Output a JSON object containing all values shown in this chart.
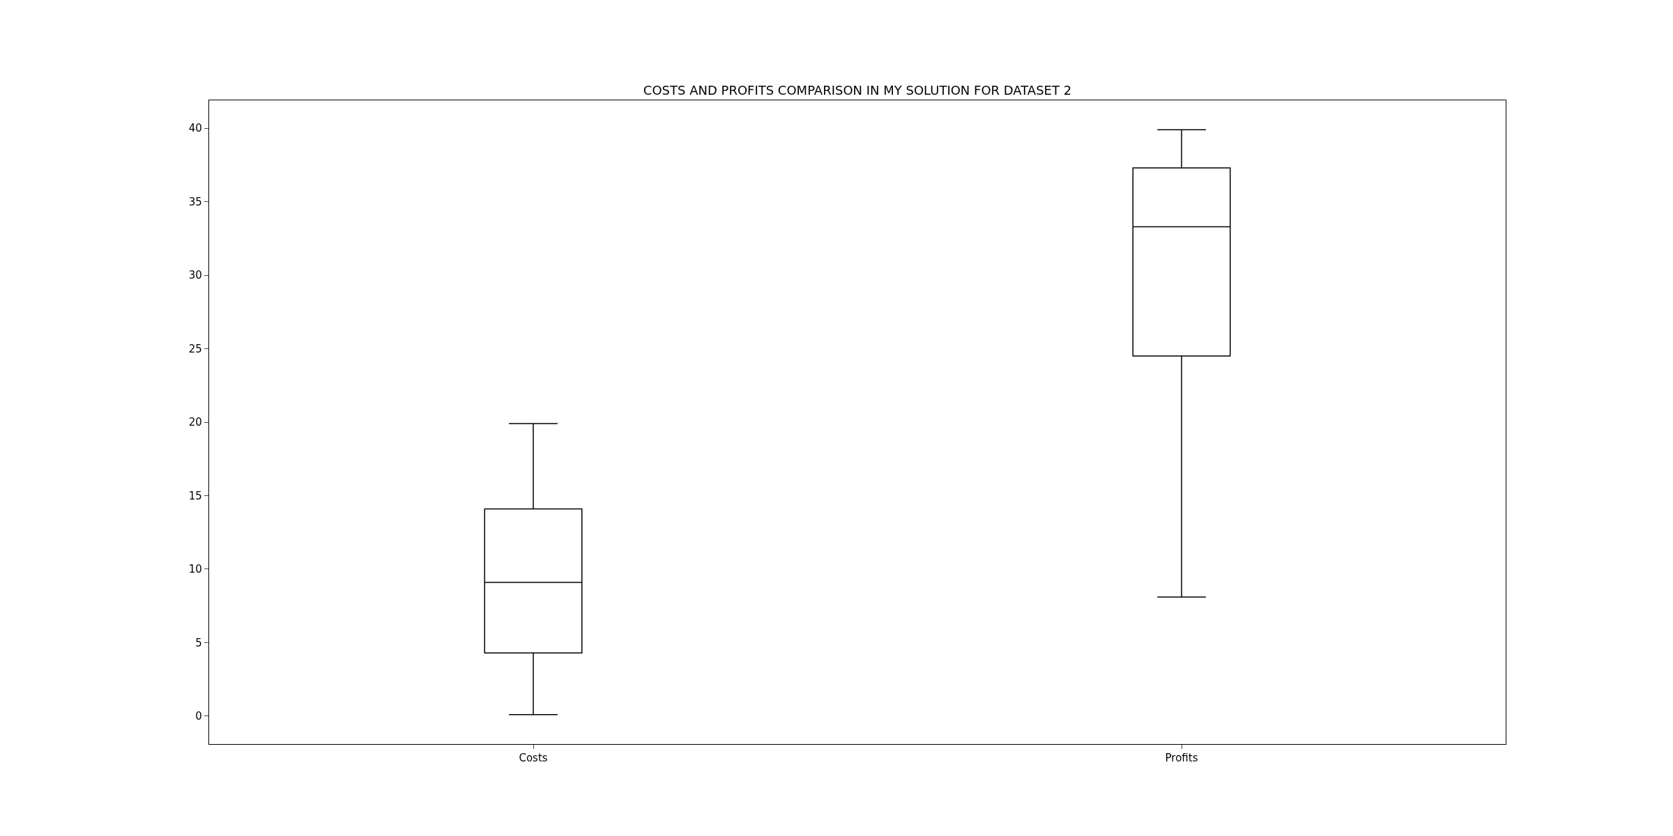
{
  "chart_data": {
    "type": "box",
    "title": "COSTS AND PROFITS COMPARISON IN MY SOLUTION FOR DATASET 2",
    "categories": [
      "Costs",
      "Profits"
    ],
    "series": [
      {
        "color": "#000000",
        "boxes": [
          {
            "low": 0.1,
            "q1": 4.3,
            "median": 9.1,
            "q3": 14.1,
            "high": 19.9
          },
          {
            "low": 8.1,
            "q1": 24.5,
            "median": 33.3,
            "q3": 37.3,
            "high": 39.9
          }
        ]
      }
    ],
    "ylim": [
      -1.9,
      41.9
    ],
    "yticks": [
      0,
      5,
      10,
      15,
      20,
      25,
      30,
      35,
      40
    ],
    "grid": false
  }
}
